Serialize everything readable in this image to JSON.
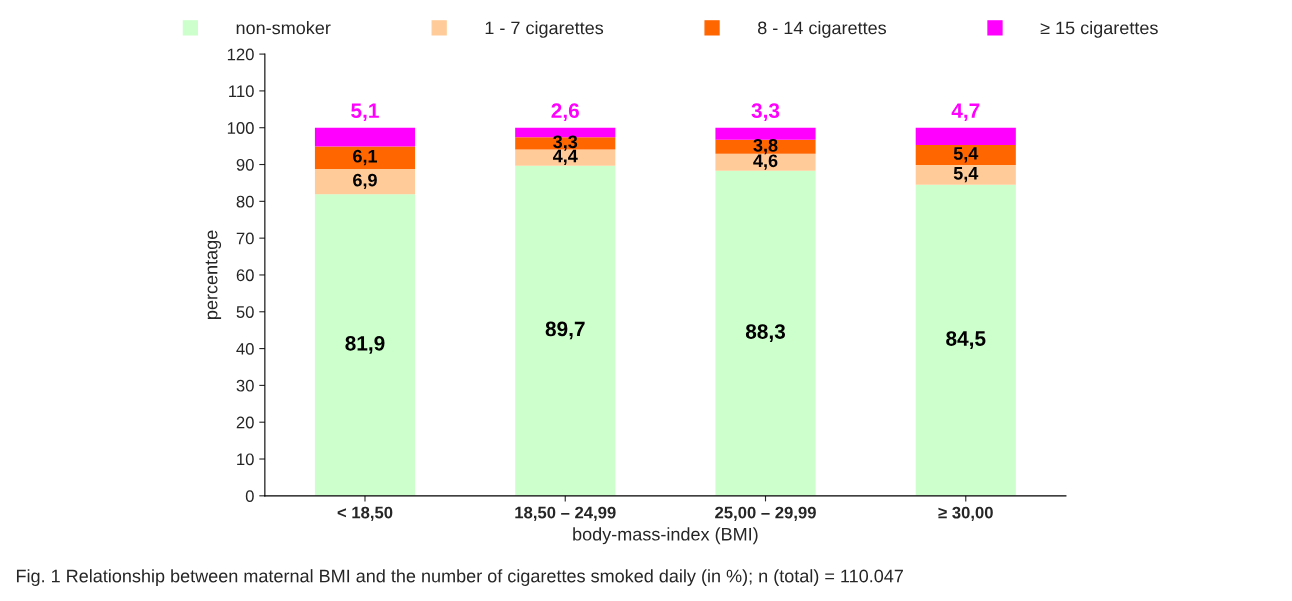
{
  "chart_data": {
    "type": "bar",
    "stacked": true,
    "xlabel": "body-mass-index (BMI)",
    "ylabel": "percentage",
    "categories": [
      "< 18,50",
      "18,50 – 24,99",
      "25,00 – 29,99",
      "≥ 30,00"
    ],
    "series": [
      {
        "name": "non-smoker",
        "color": "#ccffcc",
        "values": [
          81.9,
          89.7,
          88.3,
          84.5
        ],
        "value_labels": [
          "81,9",
          "89,7",
          "88,3",
          "84,5"
        ]
      },
      {
        "name": "1 - 7 cigarettes",
        "color": "#ffcc99",
        "values": [
          6.9,
          4.4,
          4.6,
          5.4
        ],
        "value_labels": [
          "6,9",
          "4,4",
          "4,6",
          "5,4"
        ]
      },
      {
        "name": "8 - 14 cigarettes",
        "color": "#ff6600",
        "values": [
          6.1,
          3.3,
          3.8,
          5.4
        ],
        "value_labels": [
          "6,1",
          "3,3",
          "3,8",
          "5,4"
        ]
      },
      {
        "name": "≥ 15 cigarettes",
        "color": "#ff00ff",
        "values": [
          5.1,
          2.6,
          3.3,
          4.7
        ],
        "value_labels": [
          "5,1",
          "2,6",
          "3,3",
          "4,7"
        ]
      }
    ],
    "ylim": [
      0,
      120
    ],
    "yticks": [
      0,
      10,
      20,
      30,
      40,
      50,
      60,
      70,
      80,
      90,
      100,
      110,
      120
    ],
    "grid": false,
    "legend": "top",
    "annotations": [
      "Fig. 1 Relationship between maternal BMI and the number of cigarettes smoked daily (in %); n (total) = 110.047"
    ]
  }
}
